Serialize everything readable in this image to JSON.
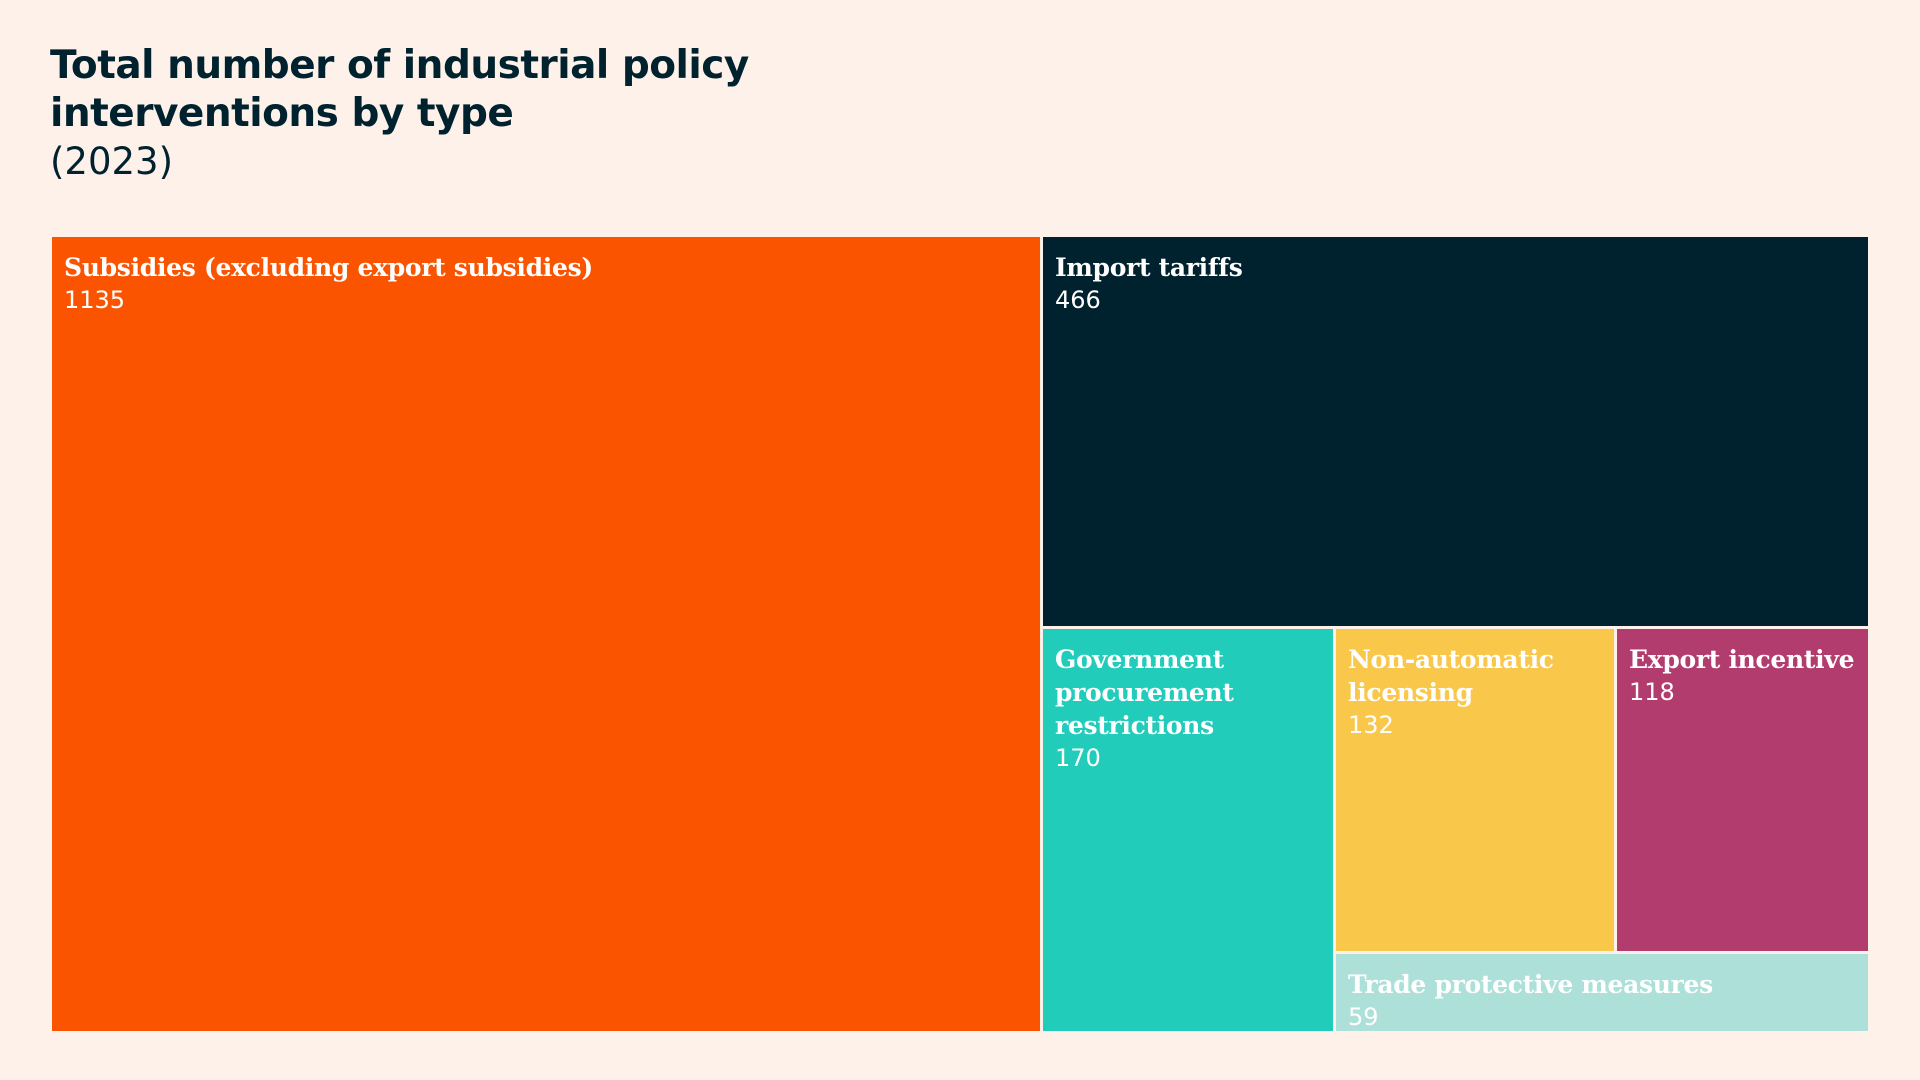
{
  "title": "Total number of industrial policy interventions by type",
  "subtitle": "(2023)",
  "chart_data": {
    "type": "treemap",
    "series": [
      {
        "name": "Subsidies (excluding export subsidies)",
        "value": 1135,
        "color": "#fa5400",
        "text_color": "#ffffff"
      },
      {
        "name": "Import tariffs",
        "value": 466,
        "color": "#00222e",
        "text_color": "#ffffff"
      },
      {
        "name": "Government procurement restrictions",
        "value": 170,
        "color": "#21ccbb",
        "text_color": "#ffffff"
      },
      {
        "name": "Non-automatic licensing",
        "value": 132,
        "color": "#f9c74a",
        "text_color": "#ffffff"
      },
      {
        "name": "Export incentive",
        "value": 118,
        "color": "#b33c6e",
        "text_color": "#ffffff"
      },
      {
        "name": "Trade protective measures",
        "value": 59,
        "color": "#ace0d8",
        "text_color": "#ffffff"
      }
    ]
  }
}
